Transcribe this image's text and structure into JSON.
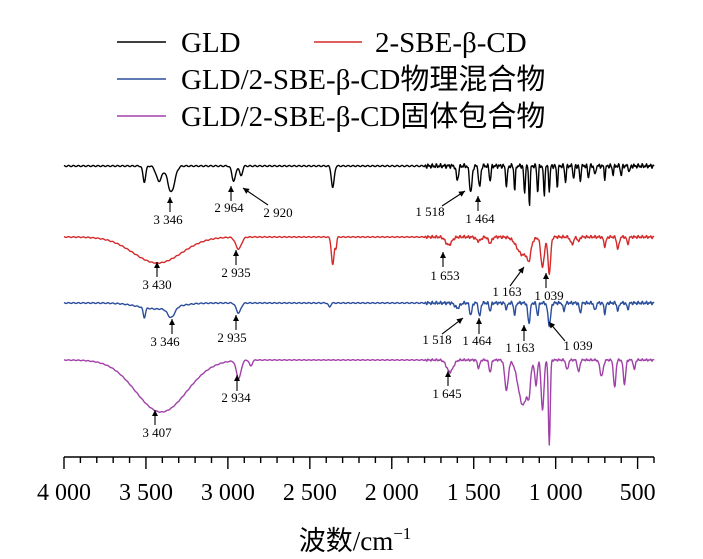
{
  "chart_data": {
    "type": "line",
    "xlabel": "波数/cm",
    "xlabel_sup": "−1",
    "x_reversed": true,
    "xlim": [
      4000,
      400
    ],
    "xticks": [
      4000,
      3500,
      3000,
      2500,
      2000,
      1500,
      1000,
      500
    ],
    "xtick_labels": [
      "4 000",
      "3 500",
      "3 000",
      "2 500",
      "2 000",
      "1 500",
      "1 000",
      "500"
    ],
    "y_axis": "none",
    "legend_position": "top",
    "series": [
      {
        "name": "GLD",
        "color": "#000000",
        "peaks": [
          {
            "x": 3346,
            "label": "3 346"
          },
          {
            "x": 2964,
            "label": "2 964"
          },
          {
            "x": 2920,
            "label": "2 920"
          },
          {
            "x": 1518,
            "label": "1 518"
          },
          {
            "x": 1464,
            "label": "1 464"
          }
        ]
      },
      {
        "name": "2-SBE-β-CD",
        "color": "#d42a2a",
        "peaks": [
          {
            "x": 3430,
            "label": "3 430"
          },
          {
            "x": 2935,
            "label": "2 935"
          },
          {
            "x": 1653,
            "label": "1 653"
          },
          {
            "x": 1163,
            "label": "1 163"
          },
          {
            "x": 1039,
            "label": "1 039"
          }
        ]
      },
      {
        "name": "GLD/2-SBE-β-CD物理混合物",
        "color": "#2a4d9c",
        "peaks": [
          {
            "x": 3346,
            "label": "3 346"
          },
          {
            "x": 2935,
            "label": "2 935"
          },
          {
            "x": 1518,
            "label": "1 518"
          },
          {
            "x": 1464,
            "label": "1 464"
          },
          {
            "x": 1163,
            "label": "1 163"
          },
          {
            "x": 1039,
            "label": "1 039"
          }
        ]
      },
      {
        "name": "GLD/2-SBE-β-CD固体包合物",
        "color": "#a040a8",
        "peaks": [
          {
            "x": 3407,
            "label": "3 407"
          },
          {
            "x": 2934,
            "label": "2 934"
          },
          {
            "x": 1645,
            "label": "1 645"
          }
        ]
      }
    ]
  }
}
